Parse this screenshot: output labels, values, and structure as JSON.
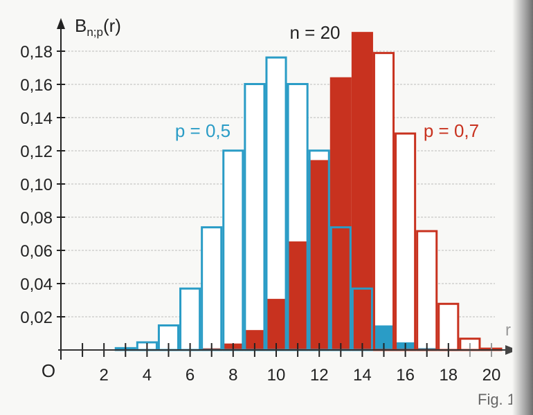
{
  "chart_data": {
    "type": "bar",
    "title": "n = 20",
    "ylabel": "B",
    "ylabel_sub": "n;p",
    "ylabel_suffix": "(r)",
    "xlabel": "r",
    "origin_label": "O",
    "caption": "Fig. 1",
    "ylim": [
      0,
      0.19
    ],
    "xlim": [
      0,
      20
    ],
    "grid": true,
    "yticks": [
      "0,02",
      "0,04",
      "0,06",
      "0,08",
      "0,10",
      "0,12",
      "0,14",
      "0,16",
      "0,18"
    ],
    "ytick_values": [
      0.02,
      0.04,
      0.06,
      0.08,
      0.1,
      0.12,
      0.14,
      0.16,
      0.18
    ],
    "xticks": [
      "2",
      "4",
      "6",
      "8",
      "10",
      "12",
      "14",
      "16",
      "18",
      "20"
    ],
    "xtick_values": [
      2,
      4,
      6,
      8,
      10,
      12,
      14,
      16,
      18,
      20
    ],
    "categories": [
      0,
      1,
      2,
      3,
      4,
      5,
      6,
      7,
      8,
      9,
      10,
      11,
      12,
      13,
      14,
      15,
      16,
      17,
      18,
      19,
      20
    ],
    "series": [
      {
        "name": "p = 0,5",
        "color": "#2a9cc6",
        "filled_from_r": 15,
        "values": [
          0,
          0,
          0.0002,
          0.0011,
          0.0046,
          0.0148,
          0.037,
          0.0739,
          0.1201,
          0.1602,
          0.1762,
          0.1602,
          0.1201,
          0.0739,
          0.037,
          0.0148,
          0.0046,
          0.0011,
          0.0002,
          0,
          0
        ]
      },
      {
        "name": "p = 0,7",
        "color": "#c8321f",
        "filled_to_r": 14,
        "values": [
          0,
          0,
          0,
          0,
          0,
          0,
          0.0002,
          0.001,
          0.0039,
          0.012,
          0.0308,
          0.0654,
          0.1144,
          0.1643,
          0.1916,
          0.1789,
          0.1304,
          0.0716,
          0.0278,
          0.0068,
          0.0008
        ]
      }
    ]
  }
}
